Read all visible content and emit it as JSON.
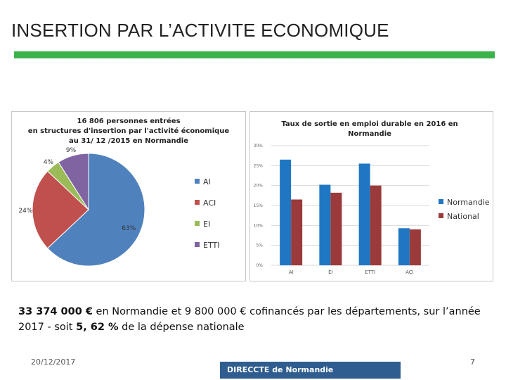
{
  "slide": {
    "title": "INSERTION PAR L’ACTIVITE ECONOMIQUE",
    "caption_bold_1": "33 374 000 €",
    "caption_text_1": " en Normandie et  9 800 000 € cofinancés par les départements, sur l’année 2017 - soit ",
    "caption_bold_2": "5, 62 %",
    "caption_text_2": " de la dépense nationale",
    "date": "20/12/2017",
    "logo_text": "DIRECCTE de Normandie",
    "page_number": "7",
    "accent_color": "#3cb34a"
  },
  "chart_data": [
    {
      "type": "pie",
      "title": "16 806 personnes entrées en structures d'insertion par l'activité économique au 31/ 12 /2015 en Normandie",
      "title_lines": [
        "16 806 personnes entrées",
        "en structures d'insertion par l'activité économique",
        "au 31/ 12 /2015 en Normandie"
      ],
      "categories": [
        "AI",
        "ACI",
        "EI",
        "ETTI"
      ],
      "values": [
        63,
        24,
        4,
        9
      ],
      "labels": [
        "63%",
        "24%",
        "4%",
        "9%"
      ],
      "colors": [
        "#4f81bd",
        "#c0504d",
        "#9bbb59",
        "#8064a2"
      ],
      "legend": "right"
    },
    {
      "type": "bar",
      "title": "Taux de sortie en emploi durable en 2016 en Normandie",
      "title_lines": [
        "Taux de sortie en emploi durable en 2016 en",
        "Normandie"
      ],
      "categories": [
        "AI",
        "EI",
        "ETTI",
        "ACI"
      ],
      "series": [
        {
          "name": "Normandie",
          "values": [
            26.5,
            20.2,
            25.5,
            9.3
          ],
          "color": "#1f77c4"
        },
        {
          "name": "National",
          "values": [
            16.5,
            18.2,
            20.0,
            9.0
          ],
          "color": "#9b3a3a"
        }
      ],
      "ylim": [
        0,
        30
      ],
      "yticks": [
        "0%",
        "5%",
        "10%",
        "15%",
        "20%",
        "25%",
        "30%"
      ],
      "grid": true,
      "legend": "right"
    }
  ]
}
